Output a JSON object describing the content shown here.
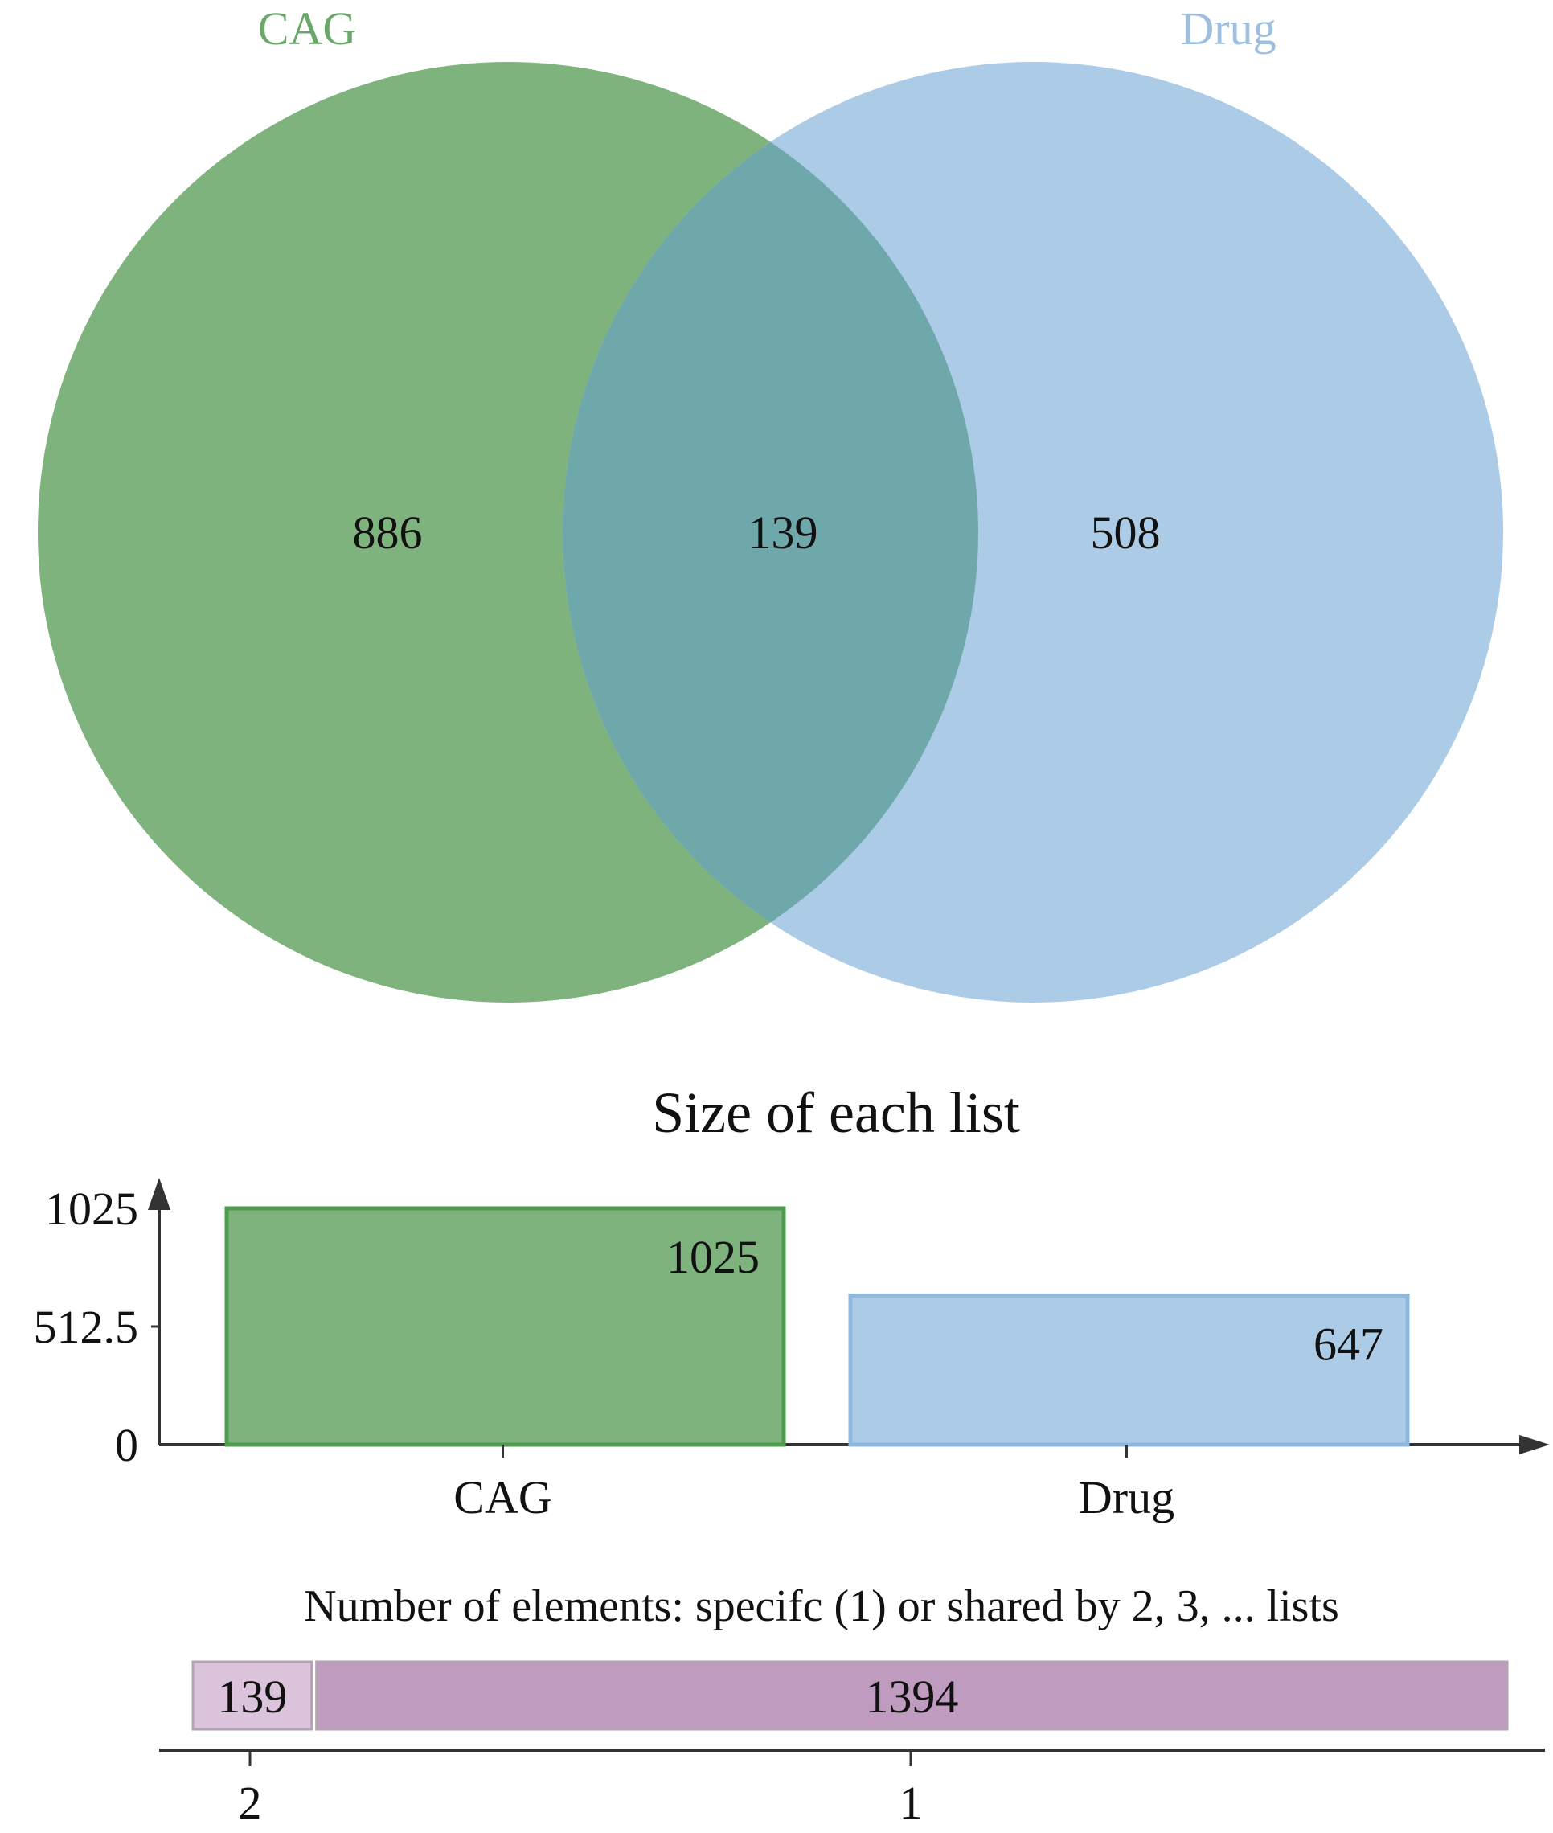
{
  "colors": {
    "cag": "#7fb37e",
    "cag_stroke": "#4e9a4e",
    "drug": "#abcbe7",
    "drug_stroke": "#8fb8de",
    "overlap": "#6fa8aa",
    "cag_label": "#6aa86a",
    "drug_label": "#9ebfe0",
    "shared_light": "#dcc3dc",
    "shared_dark": "#bf9bbf",
    "axis": "#333333"
  },
  "chart_data": [
    {
      "type": "venn",
      "sets": [
        {
          "name": "CAG",
          "only": 886
        },
        {
          "name": "Drug",
          "only": 508
        }
      ],
      "intersection": 139
    },
    {
      "type": "bar",
      "title": "Size of each list",
      "categories": [
        "CAG",
        "Drug"
      ],
      "values": [
        1025,
        647
      ],
      "data_labels": [
        "1025",
        "647"
      ],
      "yticks": [
        "0",
        "512.5",
        "1025"
      ],
      "ytick_values": [
        0,
        512.5,
        1025
      ],
      "ylim": [
        0,
        1025
      ]
    },
    {
      "type": "bar",
      "title": "Number of elements: specifc (1) or shared by 2, 3, ... lists",
      "categories": [
        "2",
        "1"
      ],
      "values": [
        139,
        1394
      ],
      "data_labels": [
        "139",
        "1394"
      ],
      "orientation": "horizontal-stacked"
    }
  ]
}
